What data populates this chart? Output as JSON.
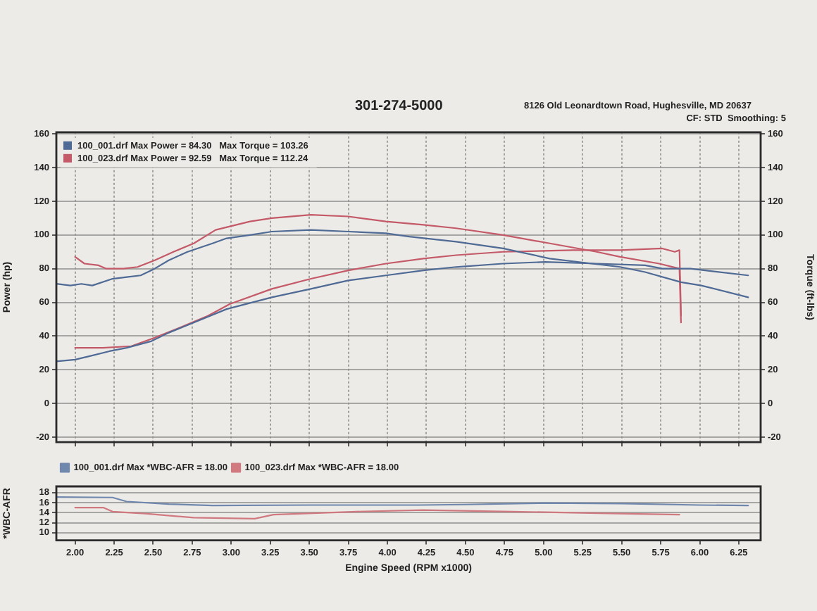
{
  "chart_data": [
    {
      "type": "line",
      "ylabel": "Power (hp)",
      "y2label": "Torque (ft-lbs)",
      "annotations": [
        "CF: STD  Smoothing: 5",
        "301-274-5000",
        "8126 Old Leonardtown Road, Hughesville, MD 20637"
      ],
      "xlim": [
        1.88,
        6.39
      ],
      "xticks": [
        2,
        2.25,
        2.5,
        2.75,
        3,
        3.25,
        3.5,
        3.75,
        4,
        4.25,
        4.5,
        4.75,
        5,
        5.25,
        5.5,
        5.75,
        6,
        6.25
      ],
      "ylim": [
        -23,
        161
      ],
      "yticks": [
        -20,
        0,
        20,
        40,
        60,
        80,
        100,
        120,
        140,
        160
      ],
      "y2lim": [
        -23,
        161
      ],
      "y2ticks": [
        -20,
        0,
        20,
        40,
        60,
        80,
        100,
        120,
        140,
        160
      ],
      "tick_labels": "y",
      "grid": true,
      "legend": "top left",
      "series": [
        {
          "name": "100_001.drf Max Power = 84.30   Max Torque = 103.26",
          "color": "#4f6a94",
          "x": [
            1.88,
            2.0,
            2.09,
            2.22,
            2.33,
            2.49,
            2.6,
            2.76,
            2.97,
            3.26,
            3.51,
            3.75,
            3.99,
            4.23,
            4.44,
            4.74,
            5.01,
            5.34,
            5.65,
            5.76,
            5.94,
            6.31
          ],
          "values": [
            25,
            26,
            28,
            31,
            33,
            37,
            42,
            48,
            56,
            63,
            68,
            73,
            76,
            79,
            81,
            83,
            84,
            83,
            82,
            80,
            80,
            76
          ]
        },
        {
          "color": "#4f6a94",
          "x": [
            1.88,
            1.97,
            2.04,
            2.11,
            2.24,
            2.33,
            2.42,
            2.51,
            2.6,
            2.72,
            2.88,
            2.97,
            3.12,
            3.26,
            3.51,
            3.75,
            3.99,
            4.14,
            4.44,
            4.74,
            5.04,
            5.49,
            5.65,
            5.88,
            6.01,
            6.31
          ],
          "values": [
            71,
            70,
            71,
            70,
            74,
            75,
            76,
            80,
            85,
            90,
            95,
            98,
            100,
            102,
            103,
            102,
            101,
            99,
            96,
            92,
            86,
            81,
            78,
            72,
            70,
            63
          ]
        },
        {
          "name": "100_023.drf Max Power = 92.59   Max Torque = 112.24",
          "color": "#c45a68",
          "x": [
            2.0,
            2.18,
            2.36,
            2.51,
            2.67,
            2.85,
            2.99,
            3.26,
            3.51,
            3.75,
            3.99,
            4.23,
            4.44,
            4.74,
            5.19,
            5.49,
            5.76,
            5.84,
            5.87,
            5.88
          ],
          "values": [
            33,
            33,
            34,
            39,
            45,
            52,
            59,
            68,
            74,
            79,
            83,
            86,
            88,
            90,
            91,
            91,
            92,
            90,
            91,
            52
          ]
        },
        {
          "color": "#c45a68",
          "x": [
            2.0,
            2.06,
            2.15,
            2.2,
            2.31,
            2.4,
            2.51,
            2.63,
            2.76,
            2.9,
            3.12,
            3.26,
            3.51,
            3.75,
            3.99,
            4.23,
            4.44,
            4.74,
            5.04,
            5.34,
            5.49,
            5.74,
            5.87,
            5.88
          ],
          "values": [
            87,
            83,
            82,
            80,
            80,
            81,
            85,
            90,
            95,
            103,
            108,
            110,
            112,
            111,
            108,
            106,
            104,
            100,
            95,
            90,
            87,
            83,
            80,
            48
          ]
        }
      ]
    },
    {
      "type": "line",
      "xlabel": "Engine Speed (RPM x1000)",
      "ylabel": "*WBC-AFR",
      "xlim": [
        1.88,
        6.39
      ],
      "xticks": [
        {
          "value": 2,
          "label": "2.00"
        },
        2.25,
        {
          "value": 2.5,
          "label": "2.50"
        },
        2.75,
        {
          "value": 3,
          "label": "3.00"
        },
        3.25,
        {
          "value": 3.5,
          "label": "3.50"
        },
        3.75,
        {
          "value": 4,
          "label": "4.00"
        },
        4.25,
        {
          "value": 4.5,
          "label": "4.50"
        },
        4.75,
        {
          "value": 5,
          "label": "5.00"
        },
        5.25,
        {
          "value": 5.5,
          "label": "5.50"
        },
        5.75,
        {
          "value": 6,
          "label": "6.00"
        },
        6.25
      ],
      "ylim": [
        8.5,
        19.2
      ],
      "yticks": [
        10,
        12,
        14,
        16,
        18
      ],
      "grid": "y",
      "legend": "top left",
      "series": [
        {
          "name": "100_001.drf Max *WBC-AFR = 18.00",
          "color": "#7088ad",
          "x": [
            1.88,
            2.24,
            2.33,
            2.6,
            2.88,
            3.5,
            4.2,
            4.5,
            5.0,
            5.5,
            6.0,
            6.31
          ],
          "values": [
            17.1,
            17.0,
            16.2,
            15.7,
            15.4,
            15.5,
            15.5,
            15.6,
            15.9,
            15.8,
            15.5,
            15.4
          ]
        },
        {
          "name": "100_023.drf Max *WBC-AFR = 18.00",
          "color": "#d07a80",
          "x": [
            2.0,
            2.18,
            2.24,
            2.45,
            2.76,
            3.15,
            3.27,
            3.8,
            4.23,
            4.8,
            5.3,
            5.87
          ],
          "values": [
            15.0,
            15.0,
            14.2,
            13.8,
            13.0,
            12.8,
            13.6,
            14.2,
            14.5,
            14.2,
            13.9,
            13.6
          ]
        }
      ]
    }
  ]
}
